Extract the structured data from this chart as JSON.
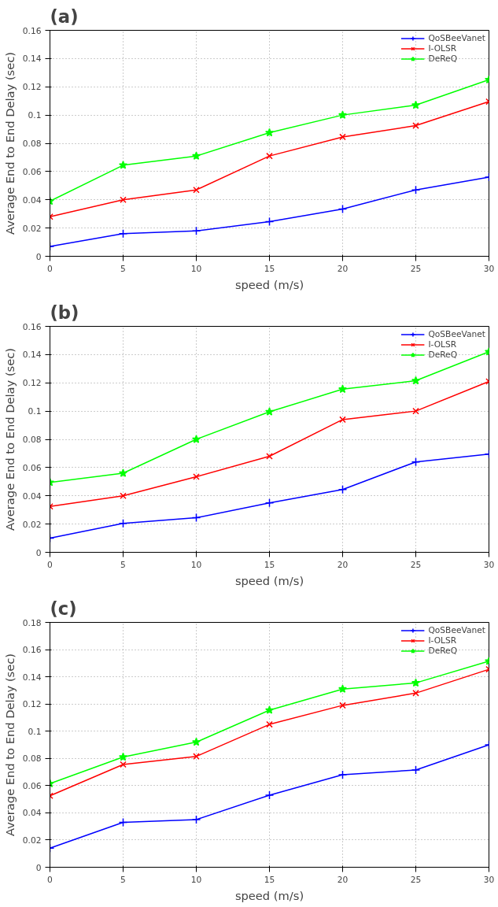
{
  "chart_data": [
    {
      "type": "line",
      "title": "(a)",
      "xlabel": "speed (m/s)",
      "ylabel": "Average End to End Delay (sec)",
      "x": [
        0,
        5,
        10,
        15,
        20,
        25,
        30
      ],
      "xlim": [
        0,
        30
      ],
      "xticks": [
        0,
        5,
        10,
        15,
        20,
        25,
        30
      ],
      "ylim": [
        0,
        0.16
      ],
      "yticks": [
        0,
        0.02,
        0.04,
        0.06,
        0.08,
        0.1,
        0.12,
        0.14,
        0.16
      ],
      "grid": true,
      "legend": "top right",
      "line_style": "solid",
      "series": [
        {
          "name": "QoSBeeVanet",
          "color": "#0000ff",
          "marker": "cross",
          "values": [
            0.007,
            0.016,
            0.018,
            0.0245,
            0.0335,
            0.047,
            0.056
          ]
        },
        {
          "name": "I-OLSR",
          "color": "#ff0000",
          "marker": "x",
          "values": [
            0.028,
            0.04,
            0.047,
            0.071,
            0.0845,
            0.0925,
            0.1095
          ]
        },
        {
          "name": "DeReQ",
          "color": "#00ff00",
          "marker": "star",
          "values": [
            0.039,
            0.0645,
            0.071,
            0.0875,
            0.1,
            0.107,
            0.125
          ]
        }
      ]
    },
    {
      "type": "line",
      "title": "(b)",
      "xlabel": "speed (m/s)",
      "ylabel": "Average End to End Delay (sec)",
      "x": [
        0,
        5,
        10,
        15,
        20,
        25,
        30
      ],
      "xlim": [
        0,
        30
      ],
      "xticks": [
        0,
        5,
        10,
        15,
        20,
        25,
        30
      ],
      "ylim": [
        0,
        0.16
      ],
      "yticks": [
        0,
        0.02,
        0.04,
        0.06,
        0.08,
        0.1,
        0.12,
        0.14,
        0.16
      ],
      "grid": true,
      "legend": "top right",
      "line_style": "solid",
      "series": [
        {
          "name": "QoSBeeVanet",
          "color": "#0000ff",
          "marker": "cross",
          "values": [
            0.01,
            0.0205,
            0.0245,
            0.035,
            0.0445,
            0.064,
            0.0695
          ]
        },
        {
          "name": "I-OLSR",
          "color": "#ff0000",
          "marker": "x",
          "values": [
            0.0325,
            0.04,
            0.0535,
            0.068,
            0.094,
            0.1,
            0.121
          ]
        },
        {
          "name": "DeReQ",
          "color": "#00ff00",
          "marker": "star",
          "values": [
            0.0495,
            0.056,
            0.08,
            0.0995,
            0.1155,
            0.1215,
            0.142
          ]
        }
      ]
    },
    {
      "type": "line",
      "title": "(c)",
      "xlabel": "speed (m/s)",
      "ylabel": "Average End to End Delay (sec)",
      "x": [
        0,
        5,
        10,
        15,
        20,
        25,
        30
      ],
      "xlim": [
        0,
        30
      ],
      "xticks": [
        0,
        5,
        10,
        15,
        20,
        25,
        30
      ],
      "ylim": [
        0,
        0.18
      ],
      "yticks": [
        0,
        0.02,
        0.04,
        0.06,
        0.08,
        0.1,
        0.12,
        0.14,
        0.16,
        0.18
      ],
      "grid": true,
      "legend": "top right",
      "line_style": "solid",
      "series": [
        {
          "name": "QoSBeeVanet",
          "color": "#0000ff",
          "marker": "cross",
          "values": [
            0.014,
            0.033,
            0.035,
            0.053,
            0.068,
            0.0715,
            0.09
          ]
        },
        {
          "name": "I-OLSR",
          "color": "#ff0000",
          "marker": "x",
          "values": [
            0.0525,
            0.0755,
            0.0815,
            0.105,
            0.119,
            0.128,
            0.1455
          ]
        },
        {
          "name": "DeReQ",
          "color": "#00ff00",
          "marker": "star",
          "values": [
            0.0615,
            0.081,
            0.092,
            0.1155,
            0.131,
            0.1355,
            0.1515
          ]
        }
      ]
    }
  ]
}
